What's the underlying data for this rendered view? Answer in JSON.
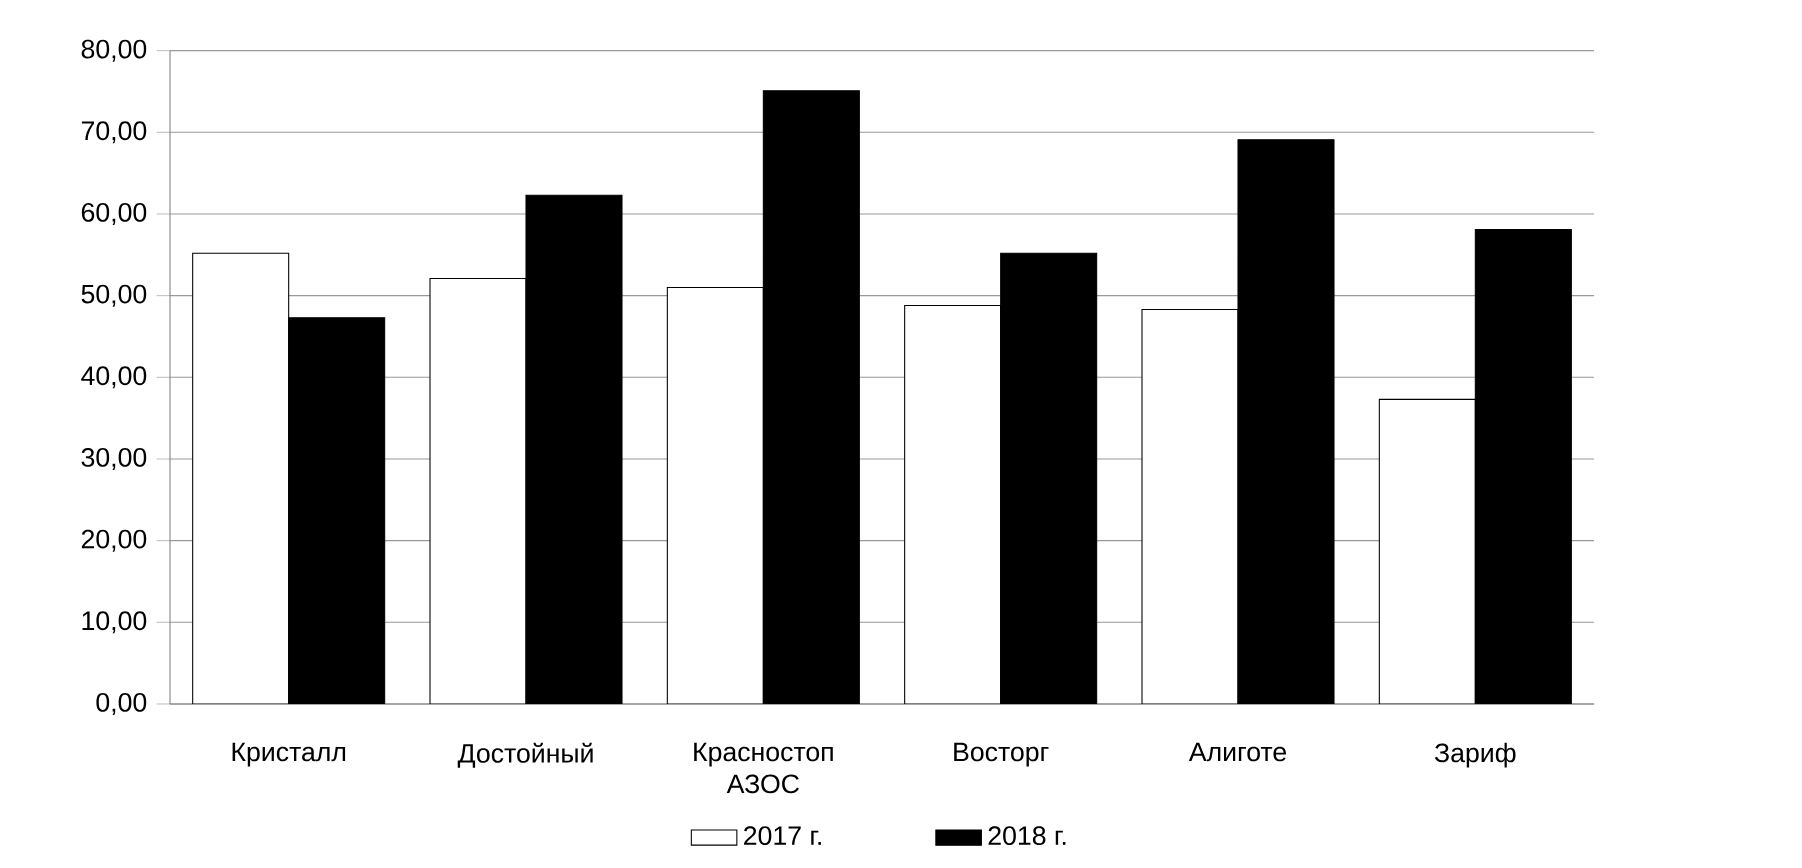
{
  "chart_data": {
    "type": "bar",
    "categories": [
      "Кристалл",
      "Достойный",
      "Красностоп АЗОС",
      "Восторг",
      "Алиготе",
      "Зариф"
    ],
    "series": [
      {
        "name": "2017 г.",
        "color": "#ffffff",
        "values": [
          55.2,
          52.1,
          51.0,
          48.8,
          48.3,
          37.3
        ]
      },
      {
        "name": "2018 г.",
        "color": "#000000",
        "values": [
          47.3,
          62.3,
          75.1,
          55.2,
          69.1,
          58.1
        ]
      }
    ],
    "ylim": [
      0,
      80
    ],
    "yticks": [
      {
        "value": 0,
        "label": "0,00"
      },
      {
        "value": 10,
        "label": "10,00"
      },
      {
        "value": 20,
        "label": "20,00"
      },
      {
        "value": 30,
        "label": "30,00"
      },
      {
        "value": 40,
        "label": "40,00"
      },
      {
        "value": 50,
        "label": "50,00"
      },
      {
        "value": 60,
        "label": "60,00"
      },
      {
        "value": 70,
        "label": "70,00"
      },
      {
        "value": 80,
        "label": "80,00"
      }
    ],
    "grid": "y",
    "legend": "bottom"
  }
}
